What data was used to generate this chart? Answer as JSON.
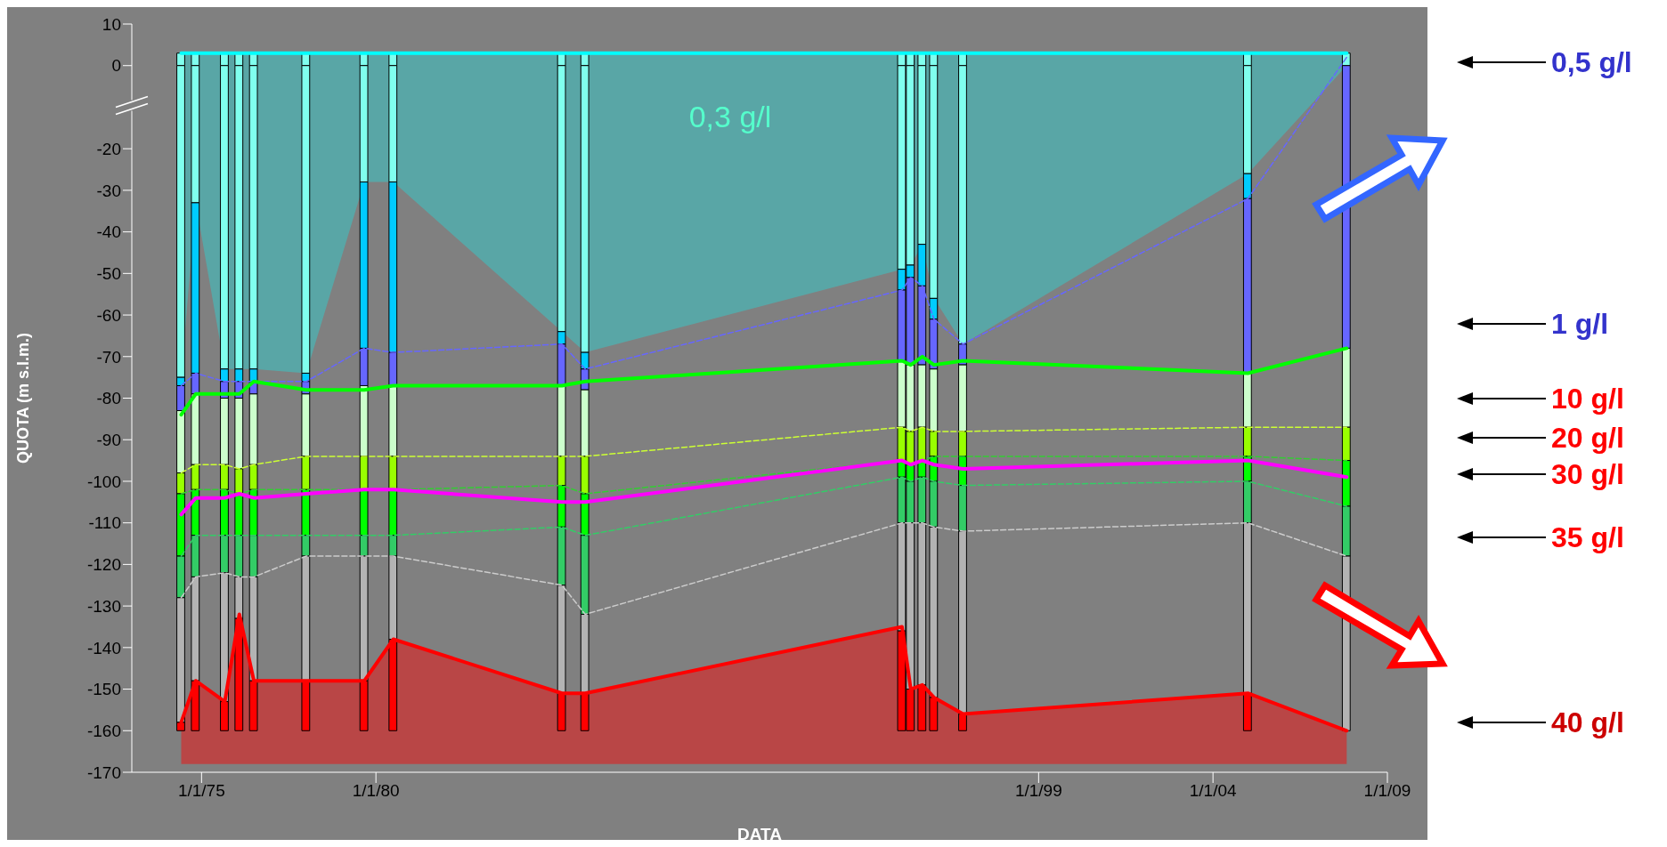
{
  "chart_data": {
    "type": "bar",
    "stacked": true,
    "xlabel": "DATA",
    "ylabel": "QUOTA (m s.l.m.)",
    "x": [
      "1974-06",
      "1974-11",
      "1975-09",
      "1976-02",
      "1976-07",
      "1978-01",
      "1979-09",
      "1980-07",
      "1985-05",
      "1986-01",
      "1995-02",
      "1995-05",
      "1995-09",
      "1996-01",
      "1996-11",
      "2005-01",
      "2007-11"
    ],
    "series": [
      {
        "color": "#80ffee",
        "values": [
          3,
          3,
          3,
          3,
          3,
          3,
          3,
          3,
          3,
          3,
          3,
          3,
          3,
          3,
          3,
          3,
          3
        ]
      },
      {
        "color": "#80ffee",
        "values": [
          -75,
          -33,
          -73,
          -73,
          -73,
          -74,
          -28,
          -28,
          -64,
          -69,
          -49,
          -48,
          -43,
          -56,
          -67,
          -26,
          0
        ]
      },
      {
        "color": "#00ccff",
        "values": [
          -2,
          -41,
          -3,
          -3,
          -3,
          -2,
          -40,
          -41,
          -3,
          -4,
          -5,
          -3,
          -10,
          -5,
          0,
          -6,
          0
        ]
      },
      {
        "color": "#6666ff",
        "values": [
          -6,
          -5,
          -4,
          -4,
          -3,
          -3,
          -9,
          -8,
          -10,
          -5,
          -17,
          -21,
          -19,
          -12,
          -5,
          -42,
          -68
        ]
      },
      {
        "color": "#ccffcc",
        "values": [
          -15,
          -17,
          -16,
          -17,
          -17,
          -15,
          -17,
          -17,
          -17,
          -16,
          -16,
          -16,
          -15,
          -15,
          -16,
          -13,
          -19
        ]
      },
      {
        "color": "#99ff00",
        "values": [
          -5,
          -6,
          -6,
          -6,
          -6,
          -8,
          -8,
          -8,
          -7,
          -9,
          -8,
          -8,
          -8,
          -6,
          -6,
          -7,
          -8
        ]
      },
      {
        "color": "#00ff00",
        "values": [
          -15,
          -11,
          -11,
          -10,
          -11,
          -11,
          -11,
          -11,
          -10,
          -10,
          -4,
          -4,
          -4,
          -6,
          -7,
          -6,
          -11
        ]
      },
      {
        "color": "#33cc66",
        "values": [
          -10,
          -10,
          -9,
          -10,
          -10,
          -5,
          -5,
          -5,
          -14,
          -19,
          -11,
          -10,
          -11,
          -11,
          -11,
          -10,
          -12
        ]
      },
      {
        "color": "#b3b3b3",
        "values": [
          -30,
          -25,
          -31,
          -10,
          -25,
          -30,
          -30,
          -20,
          -26,
          -19,
          -26,
          -40,
          -39,
          -41,
          -44,
          -41,
          -42
        ]
      },
      {
        "color": "#ff0000",
        "values": [
          -2,
          -12,
          -7,
          -27,
          -12,
          -12,
          -12,
          -22,
          -9,
          -9,
          -24,
          -10,
          -11,
          -8,
          -4,
          -9,
          0
        ]
      },
      {
        "type": "line",
        "line_style": "dashed",
        "color": "#6666ff",
        "values": [
          -77,
          -74,
          -76,
          -76,
          -76,
          -76,
          -68,
          -69,
          -67,
          -73,
          -54,
          -51,
          -53,
          -61,
          -67,
          -32,
          2
        ]
      },
      {
        "type": "line",
        "line_style": "dashed",
        "color": "#ccff33",
        "values": [
          -98,
          -96,
          -96,
          -97,
          -96,
          -94,
          -94,
          -94,
          -94,
          -94,
          -87,
          -88,
          -87,
          -88,
          -88,
          -87,
          -87
        ]
      },
      {
        "type": "line",
        "line_style": "dashed",
        "color": "#33cc33",
        "values": [
          -103,
          -102,
          -102,
          -103,
          -102,
          -102,
          -102,
          -102,
          -101,
          -103,
          -95,
          -96,
          -95,
          -94,
          -94,
          -94,
          -95
        ]
      },
      {
        "type": "line",
        "line_style": "dashed",
        "color": "#33cc66",
        "values": [
          -118,
          -113,
          -113,
          -113,
          -113,
          -113,
          -113,
          -113,
          -111,
          -113,
          -99,
          -100,
          -99,
          -100,
          -101,
          -100,
          -106
        ]
      },
      {
        "type": "line",
        "line_style": "dashed",
        "color": "#cccccc",
        "values": [
          -128,
          -123,
          -122,
          -123,
          -123,
          -118,
          -118,
          -118,
          -125,
          -132,
          -110,
          -110,
          -110,
          -111,
          -112,
          -110,
          -118
        ]
      },
      {
        "type": "line",
        "line_style": "solid",
        "color": "#00ffff",
        "values": [
          3,
          3,
          3,
          3,
          3,
          3,
          3,
          3,
          3,
          3,
          3,
          3,
          3,
          3,
          3,
          3,
          3
        ],
        "upper": [
          3,
          3,
          3,
          3,
          3,
          3,
          3,
          3,
          3,
          3,
          3,
          3,
          3,
          3,
          3,
          3,
          3
        ],
        "lower": [
          -75,
          -33,
          -73,
          -73,
          -73,
          -74,
          -28,
          -28,
          -64,
          -69,
          -49,
          -48,
          -43,
          -56,
          -67,
          -26,
          0
        ]
      },
      {
        "type": "line",
        "line_style": "solid",
        "color": "#00ff00",
        "values": [
          -84,
          -79,
          -79,
          -79,
          -76,
          -78,
          -78,
          -77,
          -77,
          -76,
          -71,
          -72,
          -70,
          -72,
          -71,
          -74,
          -68
        ]
      },
      {
        "type": "line",
        "line_style": "solid",
        "color": "#ff00ff",
        "values": [
          -108,
          -104,
          -104,
          -103,
          -104,
          -103,
          -102,
          -102,
          -105,
          -105,
          -95,
          -96,
          -95,
          -96,
          -97,
          -95,
          -99
        ]
      },
      {
        "type": "line",
        "line_style": "solid",
        "color": "#ff0000",
        "values": [
          -158,
          -148,
          -153,
          -132,
          -148,
          -148,
          -148,
          -138,
          -151,
          -151,
          -135,
          -150,
          -149,
          -152,
          -156,
          -151,
          -160
        ],
        "upper": [
          -158,
          -148,
          -153,
          -132,
          -148,
          -148,
          -148,
          -138,
          -151,
          -151,
          -135,
          -150,
          -149,
          -152,
          -156,
          -151,
          -160
        ],
        "lower": [
          -168,
          -168,
          -168,
          -168,
          -168,
          -168,
          -168,
          -168,
          -168,
          -168,
          -168,
          -168,
          -168,
          -168,
          -168,
          -168,
          -168
        ]
      }
    ],
    "ylim": [
      -170,
      10
    ],
    "yticks": [
      10,
      0,
      -20,
      -30,
      -40,
      -50,
      -60,
      -70,
      -80,
      -90,
      -100,
      -110,
      -120,
      -130,
      -140,
      -150,
      -160,
      -170
    ],
    "xlim": [
      "1973-01",
      "2009-01"
    ],
    "xticks": [
      {
        "value": "1975-01-01",
        "label": "1/1/75"
      },
      {
        "value": "1980-01-01",
        "label": "1/1/80"
      },
      {
        "value": "1999-01-01",
        "label": "1/1/99"
      },
      {
        "value": "2004-01-01",
        "label": "1/1/04"
      },
      {
        "value": "2009-01-01",
        "label": "1/1/09"
      }
    ],
    "annotations": [
      "0,3 g/l",
      "0,5 g/l",
      "1 g/l",
      "10 g/l",
      "20 g/l",
      "30 g/l",
      "35 g/l",
      "40 g/l"
    ]
  }
}
